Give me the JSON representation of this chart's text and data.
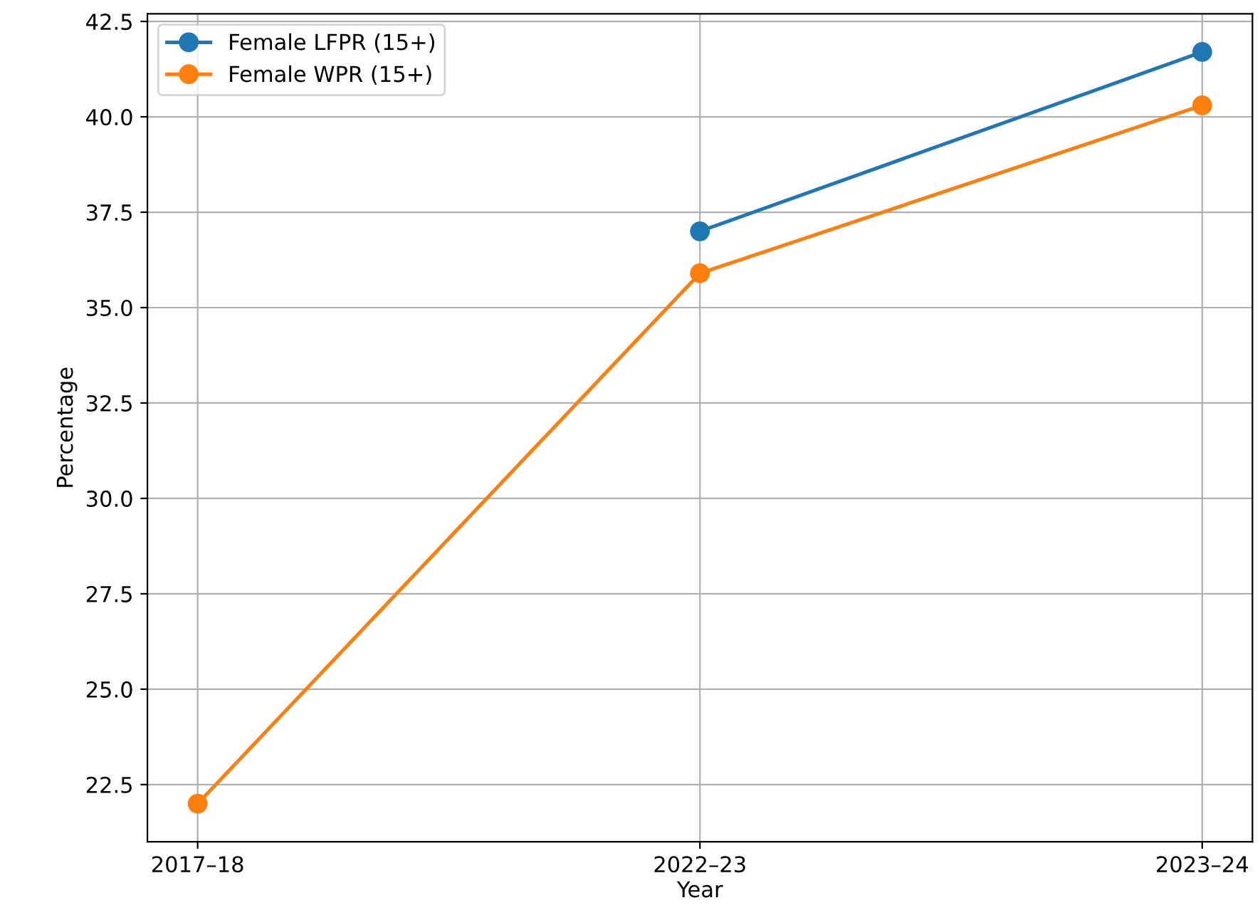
{
  "chart_data": {
    "type": "line",
    "xlabel": "Year",
    "ylabel": "Percentage",
    "categories": [
      "2017–18",
      "2022–23",
      "2023–24"
    ],
    "series": [
      {
        "name": "Female LFPR (15+)",
        "color": "#1f77b4",
        "values": [
          null,
          37.0,
          41.7
        ]
      },
      {
        "name": "Female WPR (15+)",
        "color": "#ff7f0e",
        "values": [
          22.0,
          35.9,
          40.3
        ]
      }
    ],
    "ylim": [
      21.0,
      42.7
    ],
    "yticks": [
      {
        "value": 22.5,
        "label": "22.5"
      },
      {
        "value": 25,
        "label": "25.0"
      },
      {
        "value": 27.5,
        "label": "27.5"
      },
      {
        "value": 30,
        "label": "30.0"
      },
      {
        "value": 32.5,
        "label": "32.5"
      },
      {
        "value": 35,
        "label": "35.0"
      },
      {
        "value": 37.5,
        "label": "37.5"
      },
      {
        "value": 40,
        "label": "40.0"
      },
      {
        "value": 42.5,
        "label": "42.5"
      }
    ],
    "grid": true,
    "legend": "top left",
    "marker": "circle",
    "line_style": "solid"
  }
}
